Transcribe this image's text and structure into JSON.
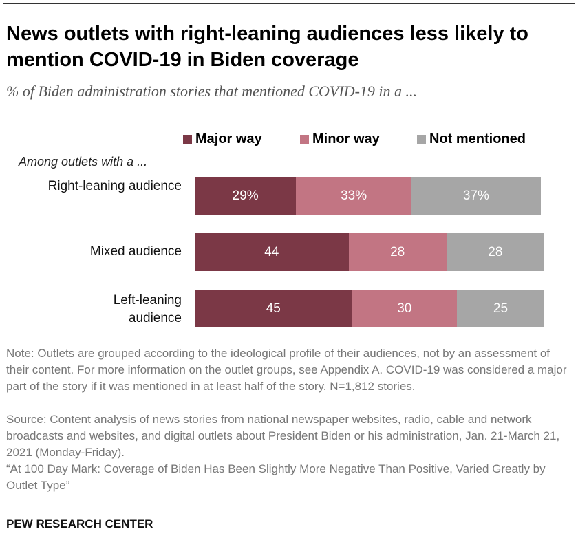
{
  "title": "News outlets with right-leaning audiences less likely to mention COVID-19 in Biden coverage",
  "subtitle": "% of Biden administration stories that mentioned COVID-19 in a ...",
  "group_label": "Among outlets with a ...",
  "chart_data": {
    "type": "bar",
    "orientation": "horizontal-stacked",
    "categories": [
      "Right-leaning audience",
      "Mixed audience",
      "Left-leaning audience"
    ],
    "series": [
      {
        "name": "Major way",
        "color": "#7B3846",
        "values": [
          29,
          44,
          45
        ],
        "labels": [
          "29%",
          "44",
          "45"
        ]
      },
      {
        "name": "Minor way",
        "color": "#C27583",
        "values": [
          33,
          28,
          30
        ],
        "labels": [
          "33%",
          "28",
          "30"
        ]
      },
      {
        "name": "Not mentioned",
        "color": "#A6A6A6",
        "values": [
          37,
          28,
          25
        ],
        "labels": [
          "37%",
          "28",
          "25"
        ]
      }
    ],
    "xlim": [
      0,
      100
    ],
    "legend": "top"
  },
  "note": "Note: Outlets are grouped according to the ideological profile of their audiences, not by an assessment of their content. For more information on the outlet groups, see Appendix A. COVID-19 was considered a major part of the story if it was mentioned in at least half of the story. N=1,812 stories.",
  "source": "Source: Content analysis of news stories from national newspaper websites, radio, cable and network broadcasts and websites, and digital outlets about President Biden or his administration, Jan. 21-March 21, 2021 (Monday-Friday).",
  "citation": "“At 100 Day Mark: Coverage of Biden Has Been Slightly More Negative Than Positive, Varied Greatly by Outlet Type”",
  "org": "PEW RESEARCH CENTER"
}
